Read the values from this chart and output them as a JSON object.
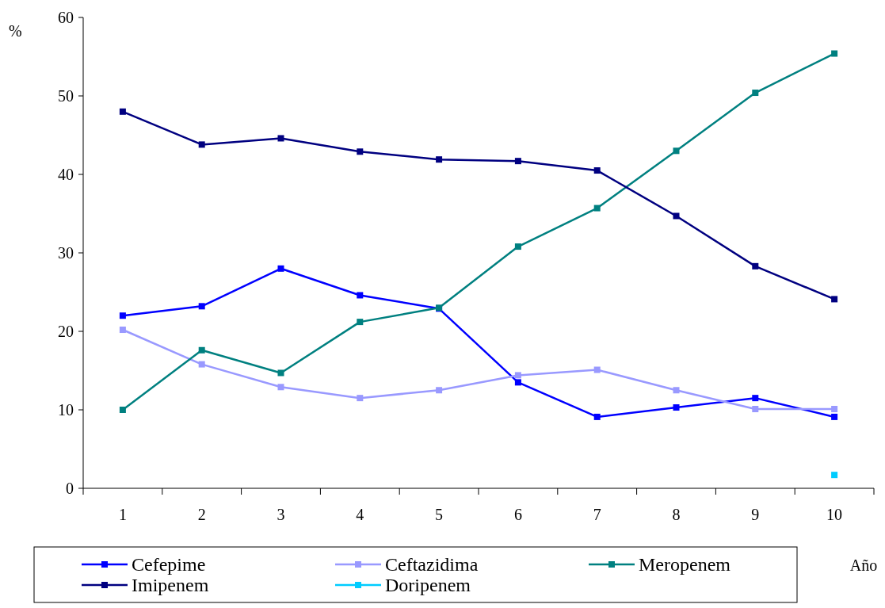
{
  "chart_data": {
    "type": "line",
    "xlabel": "Año",
    "ylabel": "%",
    "categories": [
      "1",
      "2",
      "3",
      "4",
      "5",
      "6",
      "7",
      "8",
      "9",
      "10"
    ],
    "series": [
      {
        "name": "Cefepime",
        "color": "#0000ff",
        "values": [
          22,
          23.2,
          28,
          24.6,
          22.9,
          13.5,
          9.1,
          10.3,
          11.5,
          9.1
        ]
      },
      {
        "name": "Ceftazidima",
        "color": "#9999ff",
        "values": [
          20.2,
          15.8,
          12.9,
          11.5,
          12.5,
          14.4,
          15.1,
          12.5,
          10.1,
          10.1
        ]
      },
      {
        "name": "Meropenem",
        "color": "#008080",
        "values": [
          10,
          17.6,
          14.7,
          21.2,
          23,
          30.8,
          35.7,
          43,
          50.4,
          55.4
        ]
      },
      {
        "name": "Imipenem",
        "color": "#000080",
        "values": [
          48,
          43.8,
          44.6,
          42.9,
          41.9,
          41.7,
          40.5,
          34.7,
          28.3,
          24.1
        ]
      },
      {
        "name": "Doripenem",
        "color": "#00ccff",
        "values": [
          null,
          null,
          null,
          null,
          null,
          null,
          null,
          null,
          null,
          1.7
        ]
      }
    ],
    "ylim": [
      0,
      60
    ],
    "yticks": [
      0,
      10,
      20,
      30,
      40,
      50,
      60
    ],
    "grid": false,
    "legend": "bottom",
    "marker": "square",
    "line_style": "solid"
  }
}
